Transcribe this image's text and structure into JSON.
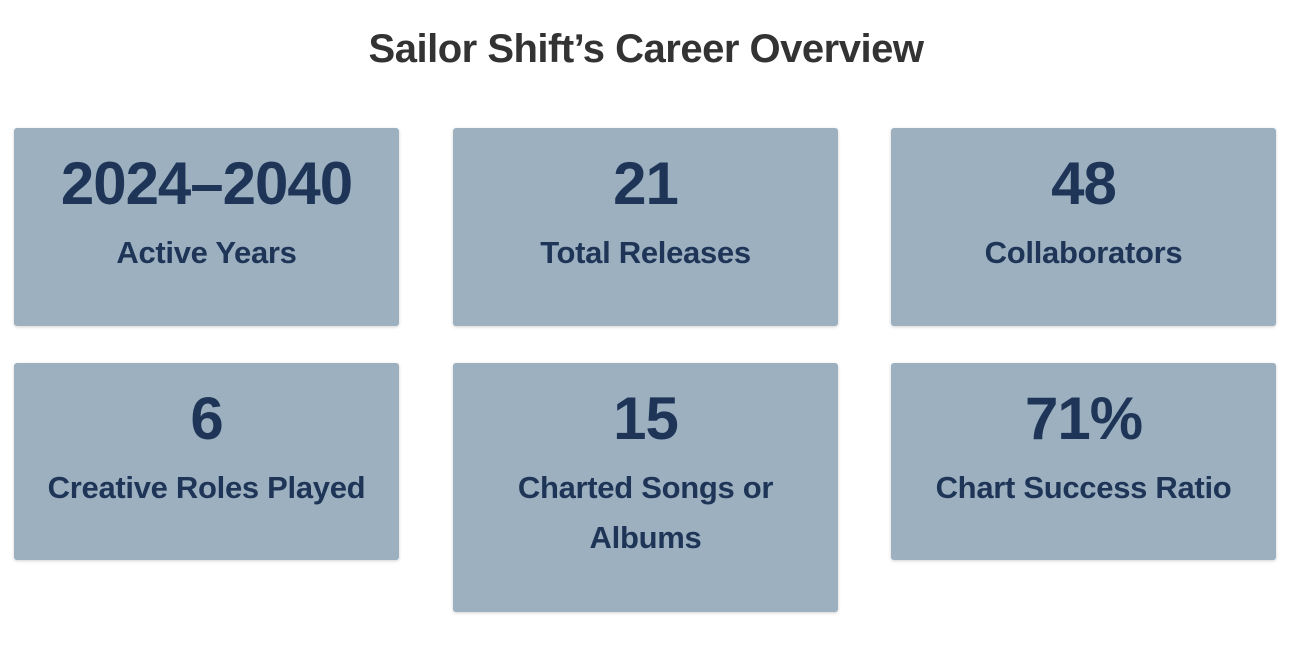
{
  "title": "Sailor Shift’s Career Overview",
  "colors": {
    "card_background": "#9cb0c0",
    "card_text": "#1e3557",
    "title_text": "#333333",
    "page_background": "#ffffff"
  },
  "stats": [
    {
      "value": "2024–2040",
      "label": "Active Years"
    },
    {
      "value": "21",
      "label": "Total Releases"
    },
    {
      "value": "48",
      "label": "Collaborators"
    },
    {
      "value": "6",
      "label": "Creative Roles Played"
    },
    {
      "value": "15",
      "label": "Charted Songs or Albums"
    },
    {
      "value": "71%",
      "label": "Chart Success Ratio"
    }
  ]
}
